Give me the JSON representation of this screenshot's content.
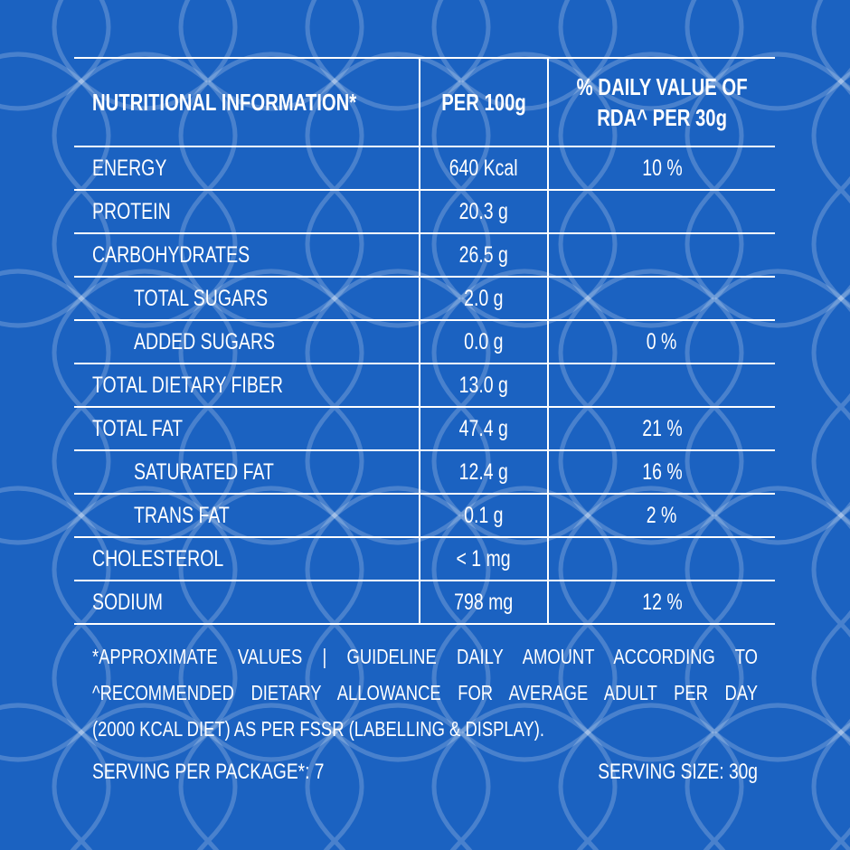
{
  "colors": {
    "background": "#1b62c1",
    "text": "#ffffff"
  },
  "header": {
    "col1": "NUTRITIONAL INFORMATION*",
    "col2": "PER 100g",
    "col3_line1": "% DAILY VALUE OF",
    "col3_line2": "RDA^ PER 30g"
  },
  "rows": [
    {
      "label": "ENERGY",
      "value": "640 Kcal",
      "pct": "10 %"
    },
    {
      "label": "PROTEIN",
      "value": "20.3 g",
      "pct": ""
    },
    {
      "label": "CARBOHYDRATES",
      "value": "26.5 g",
      "pct": ""
    },
    {
      "label": "TOTAL SUGARS",
      "value": "2.0 g",
      "pct": ""
    },
    {
      "label": "ADDED SUGARS",
      "value": "0.0 g",
      "pct": "0 %"
    },
    {
      "label": "TOTAL DIETARY FIBER",
      "value": "13.0 g",
      "pct": ""
    },
    {
      "label": "TOTAL FAT",
      "value": "47.4 g",
      "pct": "21 %"
    },
    {
      "label": "SATURATED FAT",
      "value": "12.4 g",
      "pct": "16 %"
    },
    {
      "label": "TRANS FAT",
      "value": "0.1 g",
      "pct": "2 %"
    },
    {
      "label": "CHOLESTEROL",
      "value": "< 1 mg",
      "pct": ""
    },
    {
      "label": "SODIUM",
      "value": "798 mg",
      "pct": "12 %"
    }
  ],
  "footnote": [
    "*APPROXIMATE VALUES | GUIDELINE DAILY AMOUNT ACCORDING TO",
    "^RECOMMENDED DIETARY ALLOWANCE FOR AVERAGE ADULT PER DAY",
    "(2000 KCAL DIET) AS PER FSSR (LABELLING & DISPLAY)."
  ],
  "serving": {
    "per_package": "SERVING PER PACKAGE*: 7",
    "size": "SERVING SIZE: 30g"
  }
}
